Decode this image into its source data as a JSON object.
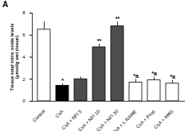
{
  "chart_data": {
    "type": "bar",
    "title": "A",
    "ylabel": "Tissue total nitric oxide levels (μmol/g wet tissue)",
    "categories": [
      "Control",
      "CsA",
      "CsA + NFI 5",
      "CsA + NFI 10",
      "CsA + NFI 20",
      "CsA + L-NAME",
      "CsA + Prop",
      "CsA + AMG"
    ],
    "values": [
      6.5,
      1.4,
      2.0,
      4.9,
      6.8,
      1.7,
      1.9,
      1.6
    ],
    "errors": [
      0.7,
      0.2,
      0.2,
      0.3,
      0.4,
      0.3,
      0.3,
      0.3
    ],
    "annotations": [
      null,
      "*",
      null,
      "**",
      "**",
      "*a",
      "*a",
      "*a"
    ],
    "colors": [
      "#ffffff",
      "#000000",
      "#4d4d4d",
      "#4d4d4d",
      "#4d4d4d",
      "#ffffff",
      "#ffffff",
      "#ffffff"
    ],
    "ylim": [
      0,
      8
    ],
    "yticks": [
      0,
      2,
      4,
      6,
      8
    ],
    "grid": false
  }
}
